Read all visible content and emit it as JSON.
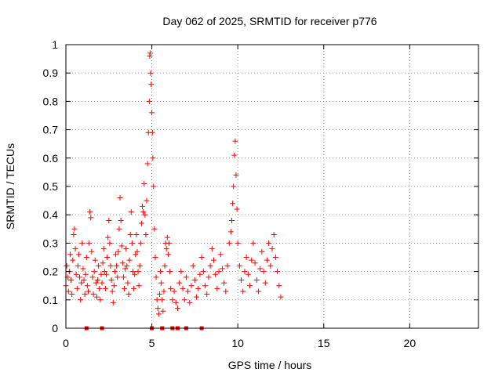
{
  "chart_data": {
    "type": "scatter",
    "title": "Day 062 of 2025, SRMTID for receiver p776",
    "xlabel": "GPS time / hours",
    "ylabel": "SRMTID / TECUs",
    "xlim": [
      0,
      24
    ],
    "ylim": [
      0,
      1
    ],
    "xticks": [
      0,
      5,
      10,
      15,
      20
    ],
    "yticks": [
      0,
      0.1,
      0.2,
      0.3,
      0.4,
      0.5,
      0.6,
      0.7,
      0.8,
      0.9,
      1
    ],
    "xtick_labels": [
      "0",
      "5",
      "10",
      "15",
      "20"
    ],
    "ytick_labels": [
      "0",
      "0.1",
      "0.2",
      "0.3",
      "0.4",
      "0.5",
      "0.6",
      "0.7",
      "0.8",
      "0.9",
      "1"
    ],
    "grid": true,
    "point_color": "#ff0000",
    "series": [
      {
        "marker": "plus",
        "points": [
          [
            0.0,
            0.15
          ],
          [
            0.05,
            0.22
          ],
          [
            0.1,
            0.18
          ],
          [
            0.15,
            0.13
          ],
          [
            0.2,
            0.2
          ],
          [
            0.25,
            0.26
          ],
          [
            0.3,
            0.17
          ],
          [
            0.35,
            0.12
          ],
          [
            0.4,
            0.24
          ],
          [
            0.45,
            0.33
          ],
          [
            0.5,
            0.35
          ],
          [
            0.55,
            0.28
          ],
          [
            0.6,
            0.19
          ],
          [
            0.65,
            0.14
          ],
          [
            0.7,
            0.22
          ],
          [
            0.75,
            0.26
          ],
          [
            0.8,
            0.18
          ],
          [
            0.85,
            0.1
          ],
          [
            0.9,
            0.16
          ],
          [
            0.95,
            0.3
          ],
          [
            1.0,
            0.21
          ],
          [
            1.05,
            0.17
          ],
          [
            1.1,
            0.12
          ],
          [
            1.15,
            0.19
          ],
          [
            1.2,
            0.25
          ],
          [
            1.25,
            0.15
          ],
          [
            1.3,
            0.13
          ],
          [
            1.35,
            0.3
          ],
          [
            1.4,
            0.41
          ],
          [
            1.45,
            0.39
          ],
          [
            1.5,
            0.27
          ],
          [
            1.55,
            0.18
          ],
          [
            1.6,
            0.12
          ],
          [
            1.65,
            0.2
          ],
          [
            1.7,
            0.24
          ],
          [
            1.75,
            0.16
          ],
          [
            1.8,
            0.11
          ],
          [
            1.85,
            0.17
          ],
          [
            1.9,
            0.22
          ],
          [
            1.95,
            0.14
          ],
          [
            2.0,
            0.1
          ],
          [
            2.05,
            0.19
          ],
          [
            2.1,
            0.16
          ],
          [
            2.15,
            0.23
          ],
          [
            2.2,
            0.28
          ],
          [
            2.25,
            0.2
          ],
          [
            2.3,
            0.14
          ],
          [
            2.35,
            0.19
          ],
          [
            2.4,
            0.25
          ],
          [
            2.45,
            0.32
          ],
          [
            2.5,
            0.38
          ],
          [
            2.55,
            0.3
          ],
          [
            2.6,
            0.22
          ],
          [
            2.65,
            0.17
          ],
          [
            2.7,
            0.13
          ],
          [
            2.75,
            0.09
          ],
          [
            2.8,
            0.15
          ],
          [
            2.85,
            0.2
          ],
          [
            2.9,
            0.26
          ],
          [
            2.95,
            0.22
          ],
          [
            3.0,
            0.18
          ],
          [
            3.05,
            0.27
          ],
          [
            3.1,
            0.35
          ],
          [
            3.15,
            0.46
          ],
          [
            3.2,
            0.38
          ],
          [
            3.25,
            0.29
          ],
          [
            3.3,
            0.23
          ],
          [
            3.35,
            0.18
          ],
          [
            3.4,
            0.14
          ],
          [
            3.45,
            0.21
          ],
          [
            3.5,
            0.28
          ],
          [
            3.55,
            0.22
          ],
          [
            3.6,
            0.16
          ],
          [
            3.65,
            0.12
          ],
          [
            3.7,
            0.24
          ],
          [
            3.75,
            0.33
          ],
          [
            3.8,
            0.41
          ],
          [
            3.85,
            0.3
          ],
          [
            3.9,
            0.2
          ],
          [
            3.95,
            0.14
          ],
          [
            4.0,
            0.19
          ],
          [
            4.05,
            0.26
          ],
          [
            4.1,
            0.33
          ],
          [
            4.15,
            0.27
          ],
          [
            4.2,
            0.2
          ],
          [
            4.25,
            0.15
          ],
          [
            4.3,
            0.22
          ],
          [
            4.35,
            0.3
          ],
          [
            4.4,
            0.37
          ],
          [
            4.45,
            0.43
          ],
          [
            4.5,
            0.41
          ],
          [
            4.55,
            0.51
          ],
          [
            4.6,
            0.4
          ],
          [
            4.65,
            0.33
          ],
          [
            4.7,
            0.45
          ],
          [
            4.75,
            0.58
          ],
          [
            4.8,
            0.69
          ],
          [
            4.85,
            0.8
          ],
          [
            4.88,
            0.96
          ],
          [
            4.9,
            0.97
          ],
          [
            4.93,
            0.9
          ],
          [
            4.96,
            0.86
          ],
          [
            5.0,
            0.76
          ],
          [
            5.03,
            0.69
          ],
          [
            5.06,
            0.6
          ],
          [
            5.1,
            0.5
          ],
          [
            5.15,
            0.35
          ],
          [
            5.2,
            0.25
          ],
          [
            5.25,
            0.18
          ],
          [
            5.3,
            0.1
          ],
          [
            5.35,
            0.07
          ],
          [
            5.4,
            0.05
          ],
          [
            5.45,
            0.12
          ],
          [
            5.5,
            0.2
          ],
          [
            5.55,
            0.16
          ],
          [
            5.6,
            0.1
          ],
          [
            5.65,
            0.06
          ],
          [
            5.7,
            0.13
          ],
          [
            5.75,
            0.22
          ],
          [
            5.8,
            0.3
          ],
          [
            5.85,
            0.28
          ],
          [
            5.9,
            0.32
          ],
          [
            5.95,
            0.26
          ],
          [
            6.0,
            0.3
          ],
          [
            6.05,
            0.2
          ],
          [
            6.1,
            0.14
          ],
          [
            6.2,
            0.1
          ],
          [
            6.3,
            0.13
          ],
          [
            6.4,
            0.09
          ],
          [
            6.5,
            0.07
          ],
          [
            6.6,
            0.16
          ],
          [
            6.7,
            0.2
          ],
          [
            6.8,
            0.14
          ],
          [
            6.9,
            0.1
          ],
          [
            7.0,
            0.18
          ],
          [
            7.1,
            0.13
          ],
          [
            7.2,
            0.09
          ],
          [
            7.3,
            0.15
          ],
          [
            7.4,
            0.22
          ],
          [
            7.5,
            0.17
          ],
          [
            7.6,
            0.11
          ],
          [
            7.7,
            0.14
          ],
          [
            7.8,
            0.19
          ],
          [
            7.9,
            0.25
          ],
          [
            8.0,
            0.2
          ],
          [
            8.1,
            0.15
          ],
          [
            8.2,
            0.12
          ],
          [
            8.3,
            0.18
          ],
          [
            8.4,
            0.22
          ],
          [
            8.5,
            0.28
          ],
          [
            8.6,
            0.24
          ],
          [
            8.7,
            0.19
          ],
          [
            8.8,
            0.14
          ],
          [
            8.9,
            0.2
          ],
          [
            9.0,
            0.26
          ],
          [
            9.1,
            0.21
          ],
          [
            9.2,
            0.16
          ],
          [
            9.3,
            0.13
          ],
          [
            9.4,
            0.22
          ],
          [
            9.5,
            0.3
          ],
          [
            9.6,
            0.34
          ],
          [
            9.65,
            0.38
          ],
          [
            9.7,
            0.44
          ],
          [
            9.75,
            0.5
          ],
          [
            9.8,
            0.61
          ],
          [
            9.85,
            0.66
          ],
          [
            9.9,
            0.54
          ],
          [
            9.95,
            0.42
          ],
          [
            10.0,
            0.3
          ],
          [
            10.1,
            0.22
          ],
          [
            10.2,
            0.17
          ],
          [
            10.3,
            0.13
          ],
          [
            10.4,
            0.2
          ],
          [
            10.5,
            0.25
          ],
          [
            10.6,
            0.19
          ],
          [
            10.7,
            0.15
          ],
          [
            10.8,
            0.24
          ],
          [
            10.9,
            0.3
          ],
          [
            11.0,
            0.23
          ],
          [
            11.1,
            0.17
          ],
          [
            11.2,
            0.13
          ],
          [
            11.3,
            0.21
          ],
          [
            11.4,
            0.27
          ],
          [
            11.5,
            0.2
          ],
          [
            11.6,
            0.16
          ],
          [
            11.7,
            0.24
          ],
          [
            11.8,
            0.3
          ],
          [
            11.9,
            0.22
          ],
          [
            12.0,
            0.28
          ],
          [
            12.1,
            0.33
          ],
          [
            12.2,
            0.25
          ],
          [
            12.3,
            0.2
          ],
          [
            12.4,
            0.15
          ],
          [
            12.5,
            0.11
          ]
        ]
      },
      {
        "marker": "square",
        "points": [
          [
            1.2,
            0
          ],
          [
            2.1,
            0
          ],
          [
            5.0,
            0
          ],
          [
            5.6,
            0
          ],
          [
            6.2,
            0
          ],
          [
            6.5,
            0
          ],
          [
            7.0,
            0
          ],
          [
            7.9,
            0
          ]
        ]
      }
    ]
  }
}
